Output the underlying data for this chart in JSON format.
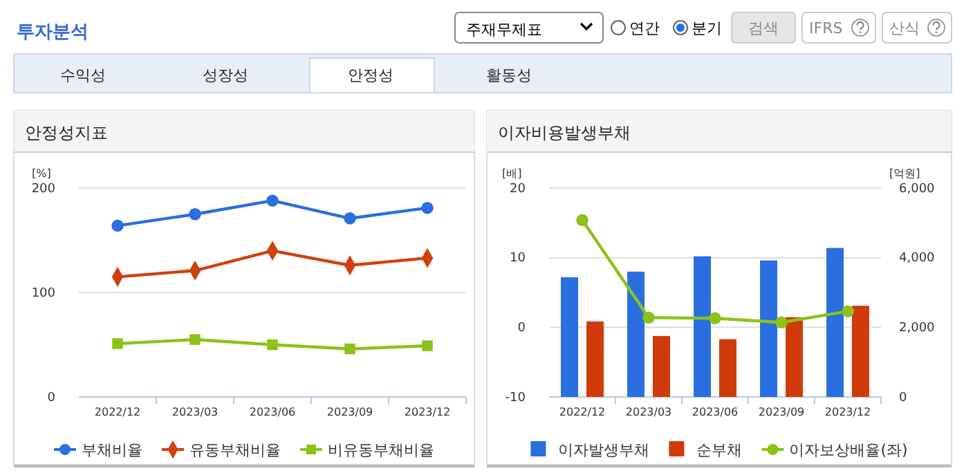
{
  "chart_data": [
    {
      "type": "other",
      "title": "투자분석",
      "annotations": [
        "수익성",
        "성장성",
        "안정성",
        "활동성",
        "주재무제표",
        "연간",
        "분기",
        "검색",
        "IFRS",
        "산식"
      ]
    },
    {
      "type": "line",
      "title": "안정성지표",
      "ylabel": "[%]",
      "categories": [
        "2022/12",
        "2023/03",
        "2023/06",
        "2023/09",
        "2023/12"
      ],
      "ylim": [
        0,
        200
      ],
      "yticks": [
        0,
        100,
        200
      ],
      "grid": "y",
      "legend": "bottom",
      "series": [
        {
          "name": "부채비율",
          "color": "#2a6ee0",
          "marker": "circle",
          "values": [
            164,
            175,
            188,
            171,
            181
          ]
        },
        {
          "name": "유동부채비율",
          "color": "#d0400f",
          "marker": "diamond",
          "values": [
            115,
            121,
            140,
            126,
            133
          ]
        },
        {
          "name": "비유동부채비율",
          "color": "#8cc21a",
          "marker": "square",
          "values": [
            51,
            55,
            50,
            46,
            49
          ]
        }
      ]
    },
    {
      "type": "bar",
      "title": "이자비용발생부채",
      "ylabel": "[배]",
      "y2label": "[억원]",
      "categories": [
        "2022/12",
        "2023/03",
        "2023/06",
        "2023/09",
        "2023/12"
      ],
      "ylim": [
        -10,
        20
      ],
      "yticks": [
        -10,
        0,
        10,
        20
      ],
      "y2lim": [
        0,
        6000
      ],
      "y2ticks": [
        0,
        {
          "value": 2000,
          "label": "2,000"
        },
        {
          "value": 4000,
          "label": "4,000"
        },
        {
          "value": 6000,
          "label": "6,000"
        }
      ],
      "grid": "y",
      "legend": "bottom",
      "series": [
        {
          "name": "이자발생부채",
          "type": "bar",
          "axis": "y2",
          "color": "#2a6ee0",
          "values": [
            3440,
            3600,
            4040,
            3920,
            4280
          ]
        },
        {
          "name": "순부채",
          "type": "bar",
          "axis": "y2",
          "color": "#d03a0a",
          "values": [
            2170,
            1750,
            1660,
            2290,
            2620
          ]
        },
        {
          "name": "이자보상배율(좌)",
          "type": "line",
          "color": "#8cc21a",
          "marker": "circle",
          "values": [
            15.4,
            1.4,
            1.3,
            0.7,
            2.3
          ]
        }
      ]
    }
  ]
}
